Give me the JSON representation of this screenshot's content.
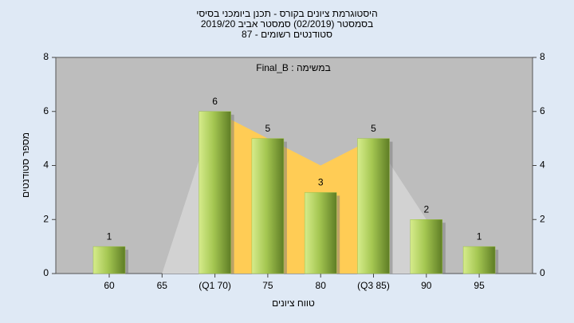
{
  "chart_data": {
    "type": "bar",
    "title": [
      "היסטוגרמת ציונים בקורס - תכנן ביומכני בסיסי",
      "בסמסטר  (02/2019)  סמסטר אביב 2019/20",
      "סטודנטים רשומים - 87"
    ],
    "annotation": "Final_B : במשימה",
    "x_label": "טווח ציונים",
    "y_label": "מספר סטודנטים",
    "categories": [
      "60",
      "65",
      "(Q1 70)",
      "75",
      "80",
      "(Q3 85)",
      "90",
      "95"
    ],
    "values": [
      1,
      0,
      6,
      5,
      3,
      5,
      2,
      1
    ],
    "value_labels": [
      "1",
      null,
      "6",
      "5",
      "3",
      "5",
      "2",
      "1"
    ],
    "color": "#9cbf48",
    "areas": [
      {
        "color": "#d2d2d2",
        "values": [
          null,
          0,
          6,
          null,
          null,
          5,
          2,
          null
        ]
      },
      {
        "color": "#ffcc55",
        "values": [
          null,
          null,
          6,
          5,
          4,
          5,
          null,
          null
        ]
      }
    ],
    "ylim": [
      0,
      8
    ],
    "yticks": [
      0,
      2,
      4,
      6,
      8
    ],
    "y2lim": [
      0,
      8
    ],
    "y2ticks": [
      0,
      2,
      4,
      6,
      8
    ],
    "grid": false
  }
}
